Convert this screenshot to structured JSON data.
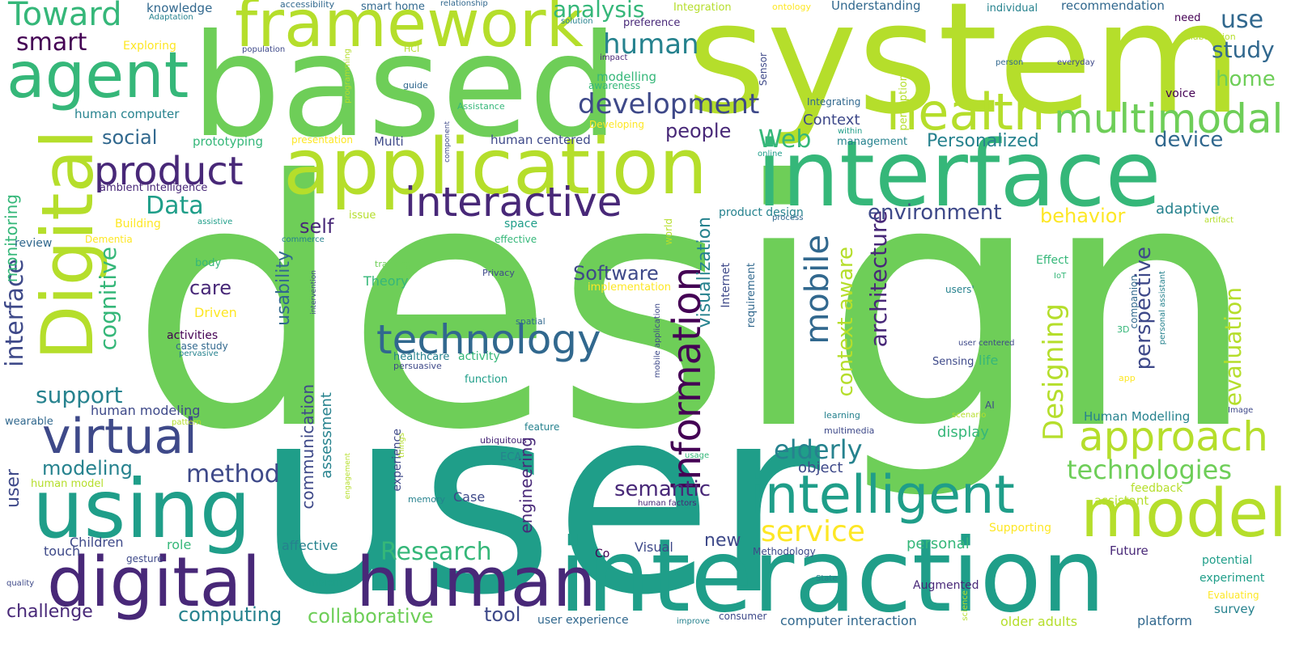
{
  "palette": [
    "#440154",
    "#482878",
    "#3e4989",
    "#31688e",
    "#26828e",
    "#1f9e89",
    "#35b779",
    "#6ece58",
    "#b5de2b",
    "#fde725"
  ],
  "words": [
    {
      "text": "design",
      "color": "#6ece58"
    },
    {
      "text": "user",
      "color": "#1f9e89"
    },
    {
      "text": "system",
      "color": "#b5de2b"
    },
    {
      "text": "based",
      "color": "#6ece58"
    },
    {
      "text": "interaction",
      "color": "#1f9e89"
    },
    {
      "text": "interface",
      "color": "#35b779"
    },
    {
      "text": "application",
      "color": "#b5de2b"
    },
    {
      "text": "framework",
      "color": "#b5de2b"
    },
    {
      "text": "using",
      "color": "#1f9e89"
    },
    {
      "text": "digital",
      "color": "#482878"
    },
    {
      "text": "human",
      "color": "#482878"
    },
    {
      "text": "Digital",
      "color": "#b5de2b"
    },
    {
      "text": "agent",
      "color": "#35b779"
    },
    {
      "text": "model",
      "color": "#b5de2b"
    },
    {
      "text": "health",
      "color": "#b5de2b"
    },
    {
      "text": "intelligent",
      "color": "#1f9e89"
    },
    {
      "text": "technology",
      "color": "#31688e"
    },
    {
      "text": "virtual",
      "color": "#3e4989"
    },
    {
      "text": "multimodal",
      "color": "#6ece58"
    },
    {
      "text": "interactive",
      "color": "#482878"
    },
    {
      "text": "information",
      "color": "#440154"
    },
    {
      "text": "product",
      "color": "#482878"
    },
    {
      "text": "approach",
      "color": "#b5de2b"
    },
    {
      "text": "Toward",
      "color": "#35b779"
    },
    {
      "text": "mobile",
      "color": "#31688e"
    },
    {
      "text": "development",
      "color": "#3e4989"
    },
    {
      "text": "Designing",
      "color": "#b5de2b"
    },
    {
      "text": "elderly",
      "color": "#26828e"
    },
    {
      "text": "technologies",
      "color": "#6ece58"
    },
    {
      "text": "service",
      "color": "#fde725"
    },
    {
      "text": "interface",
      "color": "#3e4989"
    },
    {
      "text": "Research",
      "color": "#35b779"
    },
    {
      "text": "support",
      "color": "#26828e"
    },
    {
      "text": "method",
      "color": "#3e4989"
    },
    {
      "text": "smart",
      "color": "#440154"
    },
    {
      "text": "Data",
      "color": "#1f9e89"
    },
    {
      "text": "cognitive",
      "color": "#35b779"
    },
    {
      "text": "human",
      "color": "#26828e"
    },
    {
      "text": "analysis",
      "color": "#35b779"
    },
    {
      "text": "study",
      "color": "#31688e"
    },
    {
      "text": "use",
      "color": "#31688e"
    },
    {
      "text": "home",
      "color": "#6ece58"
    },
    {
      "text": "Web",
      "color": "#35b779"
    },
    {
      "text": "architecture",
      "color": "#482878"
    },
    {
      "text": "context aware",
      "color": "#b5de2b"
    },
    {
      "text": "evaluation",
      "color": "#b5de2b"
    },
    {
      "text": "perspective",
      "color": "#3e4989"
    },
    {
      "text": "environment",
      "color": "#3e4989"
    },
    {
      "text": "semantic",
      "color": "#482878"
    },
    {
      "text": "device",
      "color": "#31688e"
    },
    {
      "text": "collaborative",
      "color": "#6ece58"
    },
    {
      "text": "computing",
      "color": "#26828e"
    },
    {
      "text": "modeling",
      "color": "#26828e"
    },
    {
      "text": "care",
      "color": "#482878"
    },
    {
      "text": "people",
      "color": "#482878"
    },
    {
      "text": "social",
      "color": "#31688e"
    },
    {
      "text": "behavior",
      "color": "#fde725"
    },
    {
      "text": "Software",
      "color": "#3e4989"
    },
    {
      "text": "usability",
      "color": "#31688e"
    },
    {
      "text": "visualization",
      "color": "#26828e"
    },
    {
      "text": "Personalized",
      "color": "#26828e"
    },
    {
      "text": "monitoring",
      "color": "#35b779"
    },
    {
      "text": "self",
      "color": "#482878"
    },
    {
      "text": "user",
      "color": "#3e4989"
    },
    {
      "text": "communication",
      "color": "#3e4989"
    },
    {
      "text": "challenge",
      "color": "#482878"
    },
    {
      "text": "tool",
      "color": "#3e4989"
    },
    {
      "text": "engineering",
      "color": "#482878"
    },
    {
      "text": "new",
      "color": "#3e4989"
    },
    {
      "text": "Context",
      "color": "#3e4989"
    },
    {
      "text": "adaptive",
      "color": "#26828e"
    },
    {
      "text": "personal",
      "color": "#35b779"
    },
    {
      "text": "assessment",
      "color": "#26828e"
    },
    {
      "text": "display",
      "color": "#35b779"
    },
    {
      "text": "object",
      "color": "#3e4989"
    },
    {
      "text": "human modeling",
      "color": "#3e4989"
    },
    {
      "text": "Children",
      "color": "#3e4989"
    },
    {
      "text": "role",
      "color": "#35b779"
    },
    {
      "text": "affective",
      "color": "#26828e"
    },
    {
      "text": "touch",
      "color": "#3e4989"
    },
    {
      "text": "Visual",
      "color": "#3e4989"
    },
    {
      "text": "Case",
      "color": "#3e4989"
    },
    {
      "text": "user experience",
      "color": "#31688e"
    },
    {
      "text": "computer interaction",
      "color": "#31688e"
    },
    {
      "text": "older adults",
      "color": "#b5de2b"
    },
    {
      "text": "platform",
      "color": "#31688e"
    },
    {
      "text": "survey",
      "color": "#26828e"
    },
    {
      "text": "experiment",
      "color": "#1f9e89"
    },
    {
      "text": "potential",
      "color": "#1f9e89"
    },
    {
      "text": "Future",
      "color": "#482878"
    },
    {
      "text": "assistant",
      "color": "#b5de2b"
    },
    {
      "text": "feedback",
      "color": "#b5de2b"
    },
    {
      "text": "Supporting",
      "color": "#fde725"
    },
    {
      "text": "Human Modelling",
      "color": "#26828e"
    },
    {
      "text": "life",
      "color": "#35b779"
    },
    {
      "text": "recommendation",
      "color": "#31688e"
    },
    {
      "text": "Understanding",
      "color": "#31688e"
    },
    {
      "text": "knowledge",
      "color": "#31688e"
    },
    {
      "text": "modelling",
      "color": "#35b779"
    },
    {
      "text": "human computer",
      "color": "#26828e"
    },
    {
      "text": "prototyping",
      "color": "#35b779"
    },
    {
      "text": "ambient intelligence",
      "color": "#482878"
    },
    {
      "text": "human centered",
      "color": "#3e4989"
    },
    {
      "text": "Multi",
      "color": "#3e4989"
    },
    {
      "text": "management",
      "color": "#26828e"
    },
    {
      "text": "product design",
      "color": "#26828e"
    },
    {
      "text": "voice",
      "color": "#440154"
    },
    {
      "text": "activities",
      "color": "#440154"
    },
    {
      "text": "case study",
      "color": "#31688e"
    },
    {
      "text": "Driven",
      "color": "#fde725"
    },
    {
      "text": "body",
      "color": "#35b779"
    },
    {
      "text": "review",
      "color": "#31688e"
    },
    {
      "text": "wearable",
      "color": "#31688e"
    },
    {
      "text": "Integration",
      "color": "#b5de2b"
    },
    {
      "text": "Effect",
      "color": "#35b779"
    },
    {
      "text": "companion",
      "color": "#31688e"
    },
    {
      "text": "requirement",
      "color": "#31688e"
    },
    {
      "text": "Internet",
      "color": "#3e4989"
    },
    {
      "text": "Theory",
      "color": "#35b779"
    },
    {
      "text": "Sensing",
      "color": "#3e4989"
    },
    {
      "text": "healthcare",
      "color": "#26828e"
    },
    {
      "text": "activity",
      "color": "#35b779"
    },
    {
      "text": "function",
      "color": "#1f9e89"
    },
    {
      "text": "space",
      "color": "#1f9e89"
    },
    {
      "text": "issue",
      "color": "#b5de2b"
    },
    {
      "text": "Integrating",
      "color": "#31688e"
    },
    {
      "text": "users'",
      "color": "#26828e"
    },
    {
      "text": "ECA",
      "color": "#26828e"
    },
    {
      "text": "experience",
      "color": "#3e4989"
    },
    {
      "text": "Augmented",
      "color": "#482878"
    },
    {
      "text": "Methodology",
      "color": "#3e4989"
    },
    {
      "text": "AI",
      "color": "#3e4989"
    },
    {
      "text": "Co",
      "color": "#440154"
    },
    {
      "text": "Evaluating",
      "color": "#fde725"
    },
    {
      "text": "gesture",
      "color": "#3e4989"
    },
    {
      "text": "ambient",
      "color": "#1f9e89"
    },
    {
      "text": "quality",
      "color": "#3e4989"
    },
    {
      "text": "memory",
      "color": "#26828e"
    },
    {
      "text": "feature",
      "color": "#26828e"
    },
    {
      "text": "Exploring",
      "color": "#fde725"
    },
    {
      "text": "Building",
      "color": "#fde725"
    },
    {
      "text": "Dementia",
      "color": "#fde725"
    },
    {
      "text": "human model",
      "color": "#b5de2b"
    },
    {
      "text": "implementation",
      "color": "#fde725"
    },
    {
      "text": "Developing",
      "color": "#fde725"
    },
    {
      "text": "presentation",
      "color": "#fde725"
    },
    {
      "text": "ontology",
      "color": "#fde725"
    },
    {
      "text": "smart home",
      "color": "#31688e"
    },
    {
      "text": "accessibility",
      "color": "#31688e"
    },
    {
      "text": "relationship",
      "color": "#31688e"
    },
    {
      "text": "Adaptation",
      "color": "#26828e"
    },
    {
      "text": "solution",
      "color": "#26828e"
    },
    {
      "text": "preference",
      "color": "#482878"
    },
    {
      "text": "individual",
      "color": "#26828e"
    },
    {
      "text": "need",
      "color": "#440154"
    },
    {
      "text": "collaboration",
      "color": "#b5de2b"
    },
    {
      "text": "population",
      "color": "#3e4989"
    },
    {
      "text": "HCI",
      "color": "#b5de2b"
    },
    {
      "text": "impact",
      "color": "#482878"
    },
    {
      "text": "person",
      "color": "#31688e"
    },
    {
      "text": "everyday",
      "color": "#3e4989"
    },
    {
      "text": "guide",
      "color": "#31688e"
    },
    {
      "text": "awareness",
      "color": "#35b779"
    },
    {
      "text": "Assistance",
      "color": "#35b779"
    },
    {
      "text": "programming",
      "color": "#b5de2b"
    },
    {
      "text": "Sensor",
      "color": "#3e4989"
    },
    {
      "text": "perception",
      "color": "#b5de2b"
    },
    {
      "text": "within",
      "color": "#1f9e89"
    },
    {
      "text": "online",
      "color": "#1f9e89"
    },
    {
      "text": "component",
      "color": "#3e4989"
    },
    {
      "text": "process",
      "color": "#31688e"
    },
    {
      "text": "artifact",
      "color": "#b5de2b"
    },
    {
      "text": "assistive",
      "color": "#1f9e89"
    },
    {
      "text": "effective",
      "color": "#35b779"
    },
    {
      "text": "commerce",
      "color": "#26828e"
    },
    {
      "text": "world",
      "color": "#b5de2b"
    },
    {
      "text": "tracking",
      "color": "#6ece58"
    },
    {
      "text": "Privacy",
      "color": "#3e4989"
    },
    {
      "text": "intervention",
      "color": "#3e4989"
    },
    {
      "text": "spatial",
      "color": "#31688e"
    },
    {
      "text": "persuasive",
      "color": "#3e4989"
    },
    {
      "text": "pervasive",
      "color": "#26828e"
    },
    {
      "text": "IoT",
      "color": "#35b779"
    },
    {
      "text": "3D",
      "color": "#35b779"
    },
    {
      "text": "user centered",
      "color": "#3e4989"
    },
    {
      "text": "personal assistant",
      "color": "#26828e"
    },
    {
      "text": "app",
      "color": "#fde725"
    },
    {
      "text": "mobile application",
      "color": "#3e4989"
    },
    {
      "text": "pattern",
      "color": "#b5de2b"
    },
    {
      "text": "things",
      "color": "#b5de2b"
    },
    {
      "text": "engagement",
      "color": "#b5de2b"
    },
    {
      "text": "ubiquitous",
      "color": "#482878"
    },
    {
      "text": "usage",
      "color": "#35b779"
    },
    {
      "text": "human factors",
      "color": "#482878"
    },
    {
      "text": "learning",
      "color": "#26828e"
    },
    {
      "text": "multimedia",
      "color": "#3e4989"
    },
    {
      "text": "scenario",
      "color": "#b5de2b"
    },
    {
      "text": "Image",
      "color": "#3e4989"
    },
    {
      "text": "State",
      "color": "#26828e"
    },
    {
      "text": "science",
      "color": "#b5de2b"
    },
    {
      "text": "improve",
      "color": "#26828e"
    },
    {
      "text": "consumer",
      "color": "#3e4989"
    }
  ]
}
